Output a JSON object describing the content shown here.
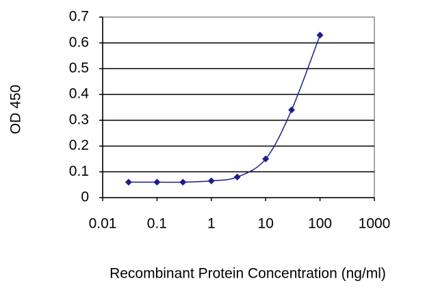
{
  "chart_data": {
    "type": "line",
    "x_label": "Recombinant Protein Concentration (ng/ml)",
    "y_label": "OD 450",
    "x": [
      0.03,
      0.1,
      0.3,
      1,
      3,
      10,
      30,
      100
    ],
    "values": [
      0.06,
      0.06,
      0.06,
      0.065,
      0.08,
      0.15,
      0.34,
      0.63
    ],
    "color": "#1c1c8a",
    "marker": "diamond",
    "log_x": true,
    "xlim": [
      0.01,
      1000
    ],
    "xticks": [
      0.01,
      0.1,
      1,
      10,
      100,
      1000
    ],
    "ylim": [
      0,
      0.7
    ],
    "yticks": [
      0,
      0.1,
      0.2,
      0.3,
      0.4,
      0.5,
      0.6,
      0.7
    ],
    "grid": true
  }
}
